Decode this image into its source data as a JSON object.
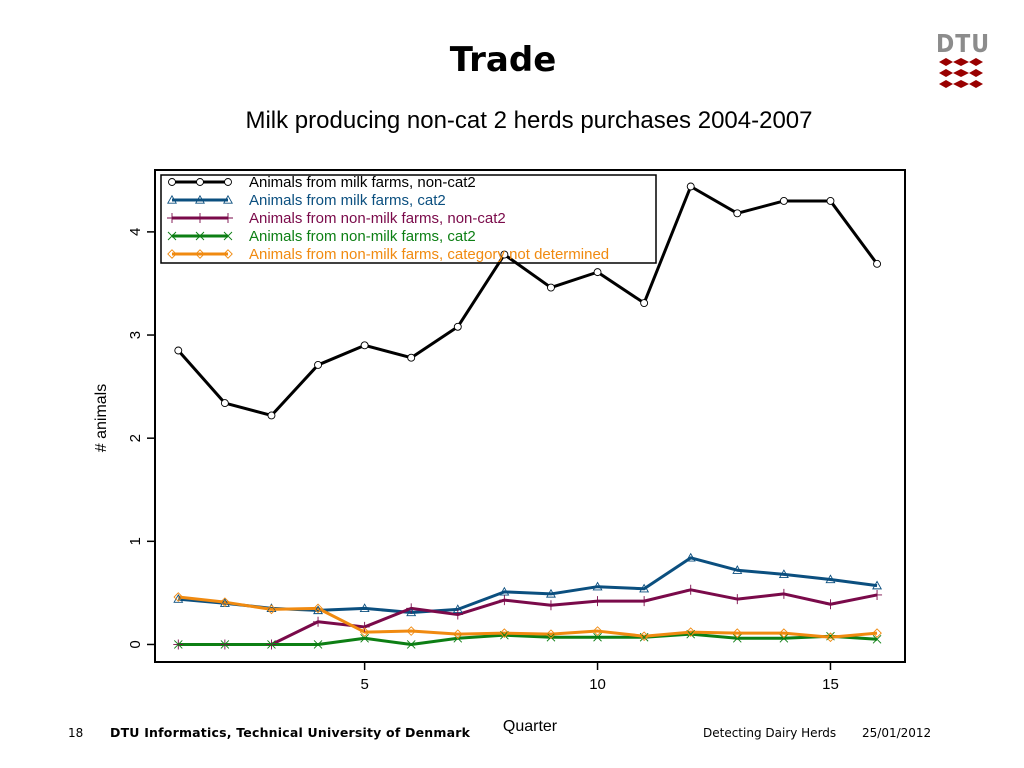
{
  "slide": {
    "title": "Trade",
    "logo_text": "DTU",
    "page_number": "18",
    "organization": "DTU Informatics, Technical University of Denmark",
    "talk_title": "Detecting Dairy Herds",
    "date": "25/01/2012"
  },
  "colors": {
    "logo_red": "#990000",
    "logo_gray": "#8c8c8c"
  },
  "chart_data": {
    "type": "line",
    "title": "Milk producing non-cat 2 herds purchases 2004-2007",
    "xlabel": "Quarter",
    "ylabel": "# animals",
    "x": [
      1,
      2,
      3,
      4,
      5,
      6,
      7,
      8,
      9,
      10,
      11,
      12,
      13,
      14,
      15,
      16
    ],
    "xlim": [
      0.5,
      16.6
    ],
    "ylim": [
      -0.17,
      4.6
    ],
    "xticks": [
      5,
      10,
      15
    ],
    "yticks": [
      0,
      1,
      2,
      3,
      4
    ],
    "grid": false,
    "legend_position": "top-left",
    "series": [
      {
        "name": "Animals from milk farms, non-cat2",
        "color": "#000000",
        "marker": "circle",
        "values": [
          2.85,
          2.34,
          2.22,
          2.71,
          2.9,
          2.78,
          3.08,
          3.78,
          3.46,
          3.61,
          3.31,
          4.44,
          4.18,
          4.3,
          4.3,
          3.69
        ]
      },
      {
        "name": "Animals from milk farms, cat2",
        "color": "#0b4f7f",
        "marker": "triangle",
        "values": [
          0.44,
          0.4,
          0.35,
          0.33,
          0.35,
          0.31,
          0.34,
          0.51,
          0.49,
          0.56,
          0.54,
          0.84,
          0.72,
          0.68,
          0.63,
          0.57
        ]
      },
      {
        "name": "Animals from non-milk farms, non-cat2",
        "color": "#7a0a4a",
        "marker": "plus",
        "values": [
          0.0,
          0.0,
          0.0,
          0.22,
          0.17,
          0.35,
          0.29,
          0.43,
          0.38,
          0.42,
          0.42,
          0.53,
          0.44,
          0.49,
          0.39,
          0.48
        ]
      },
      {
        "name": "Animals from non-milk farms, cat2",
        "color": "#0d7f14",
        "marker": "x",
        "values": [
          0.0,
          0.0,
          0.0,
          0.0,
          0.06,
          0.0,
          0.06,
          0.09,
          0.07,
          0.07,
          0.07,
          0.1,
          0.06,
          0.06,
          0.08,
          0.05
        ]
      },
      {
        "name": "Animals from non-milk farms, category not determined",
        "color": "#f08a10",
        "marker": "diamond",
        "values": [
          0.46,
          0.41,
          0.34,
          0.35,
          0.12,
          0.13,
          0.1,
          0.11,
          0.1,
          0.13,
          0.08,
          0.12,
          0.11,
          0.11,
          0.07,
          0.11
        ]
      }
    ]
  }
}
